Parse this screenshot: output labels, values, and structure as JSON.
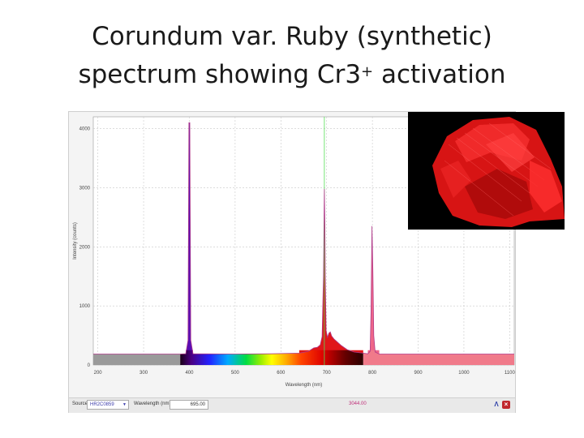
{
  "slide": {
    "title_line1": "Corundum var. Ruby (synthetic)",
    "title_line2": "spectrum showing Cr3",
    "title_sup": "+",
    "title_line2_end": " activation"
  },
  "chart_data": {
    "type": "line",
    "title": "",
    "xlabel": "Wavelength (nm)",
    "ylabel": "Intensity (counts)",
    "xlim": [
      190,
      1110
    ],
    "ylim": [
      0,
      4200
    ],
    "xticks": [
      200,
      300,
      400,
      500,
      600,
      700,
      800,
      900,
      1000,
      1100
    ],
    "yticks": [
      0,
      1000,
      2000,
      3000,
      4000
    ],
    "grid": true,
    "cursor_wavelength": 695,
    "series": [
      {
        "points": [
          [
            190,
            185
          ],
          [
            300,
            185
          ],
          [
            380,
            185
          ],
          [
            392,
            190
          ],
          [
            397,
            420
          ],
          [
            399,
            4100
          ],
          [
            401,
            4100
          ],
          [
            403,
            420
          ],
          [
            408,
            190
          ],
          [
            500,
            185
          ],
          [
            580,
            190
          ],
          [
            640,
            200
          ],
          [
            660,
            230
          ],
          [
            672,
            290
          ],
          [
            680,
            300
          ],
          [
            686,
            340
          ],
          [
            690,
            480
          ],
          [
            693,
            1500
          ],
          [
            694,
            2200
          ],
          [
            695,
            2980
          ],
          [
            696,
            2400
          ],
          [
            697,
            1500
          ],
          [
            699,
            580
          ],
          [
            702,
            470
          ],
          [
            705,
            540
          ],
          [
            708,
            560
          ],
          [
            711,
            490
          ],
          [
            716,
            440
          ],
          [
            722,
            400
          ],
          [
            732,
            330
          ],
          [
            745,
            260
          ],
          [
            760,
            220
          ],
          [
            780,
            200
          ],
          [
            790,
            190
          ],
          [
            795,
            230
          ],
          [
            797,
            900
          ],
          [
            799,
            2350
          ],
          [
            801,
            1600
          ],
          [
            803,
            500
          ],
          [
            806,
            220
          ],
          [
            815,
            185
          ],
          [
            900,
            185
          ],
          [
            1000,
            185
          ],
          [
            1100,
            185
          ],
          [
            1110,
            185
          ]
        ]
      }
    ]
  },
  "toolbar": {
    "source_label": "Source:",
    "source_value": "HR2C0859",
    "wavelength_label": "Wavelength (nm):",
    "wavelength_value": "695.00",
    "readout": "3044.00"
  },
  "colors": {
    "plot_bg": "#ffffff",
    "grid": "#c8c8c8",
    "cursor": "#55dd55",
    "uv_gray": "#9a9a9a",
    "ir_pink": "#f07a8a"
  },
  "icons": {
    "spectrum_tool": "spectrum-icon",
    "close_tool": "close-icon"
  }
}
